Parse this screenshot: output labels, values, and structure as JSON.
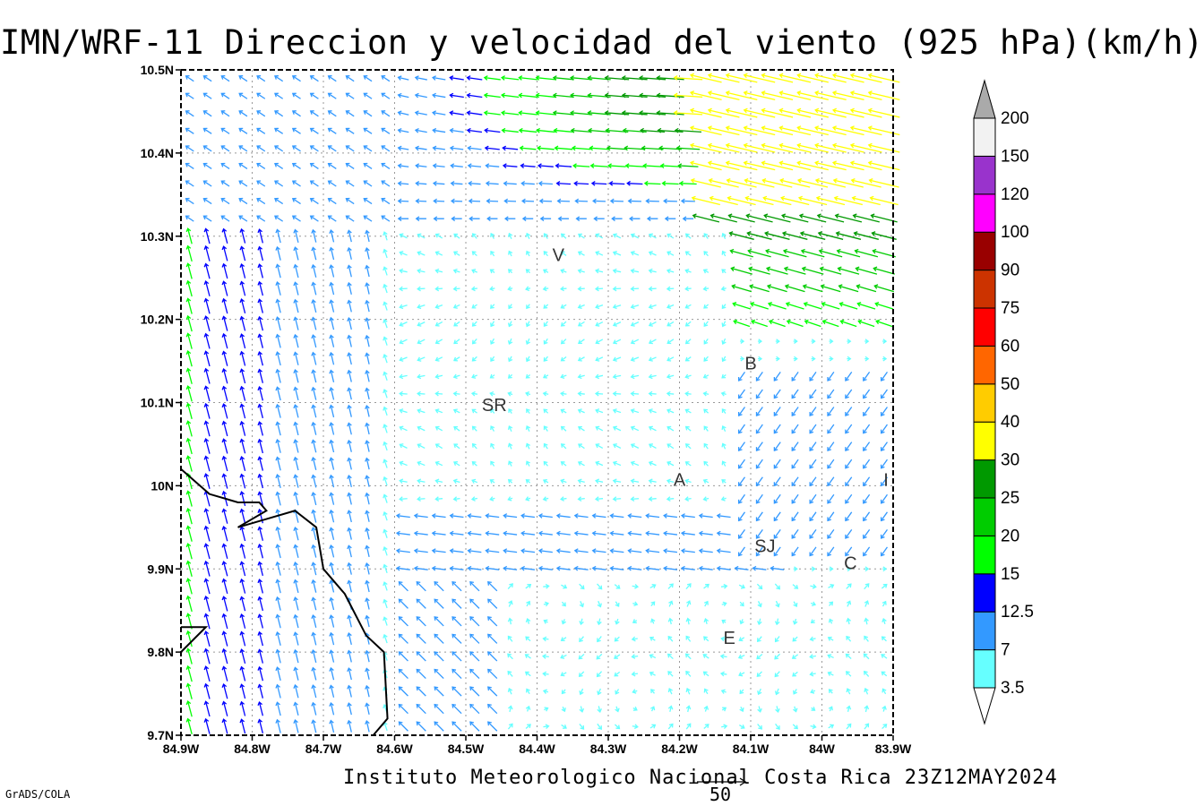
{
  "title": "IMN/WRF-11 Direccion y velocidad del viento (925 hPa)(km/h)",
  "footer": "Instituto Meteorologico Nacional Costa Rica 23Z12MAY2024",
  "credit": "GrADS/COLA",
  "reference_vector": {
    "value": "50"
  },
  "chart_data": {
    "type": "vector_field",
    "xlabel": "",
    "ylabel": "",
    "xlim": [
      -84.9,
      -83.9
    ],
    "ylim": [
      9.7,
      10.5
    ],
    "x_ticks": [
      "84.9W",
      "84.8W",
      "84.7W",
      "84.6W",
      "84.5W",
      "84.4W",
      "84.3W",
      "84.2W",
      "84.1W",
      "84W",
      "83.9W"
    ],
    "y_ticks": [
      "9.7N",
      "9.8N",
      "9.9N",
      "10N",
      "10.1N",
      "10.2N",
      "10.3N",
      "10.4N",
      "10.5N"
    ],
    "grid": true,
    "colorbar": {
      "labels": [
        "3.5",
        "7",
        "12.5",
        "15",
        "20",
        "25",
        "30",
        "40",
        "50",
        "60",
        "75",
        "90",
        "100",
        "120",
        "150",
        "200"
      ],
      "colors": [
        "#ffffff",
        "#66ffff",
        "#3399ff",
        "#0000ff",
        "#00ff00",
        "#00cc00",
        "#009900",
        "#ffff00",
        "#ffcc00",
        "#ff6600",
        "#ff0000",
        "#cc3300",
        "#990000",
        "#ff00ff",
        "#9933cc",
        "#f2f2f2",
        "#aaaaaa"
      ]
    },
    "places": [
      {
        "label": "V",
        "lon": -84.37,
        "lat": 10.27
      },
      {
        "label": "B",
        "lon": -84.1,
        "lat": 10.14
      },
      {
        "label": "SR",
        "lon": -84.46,
        "lat": 10.09
      },
      {
        "label": "A",
        "lon": -84.2,
        "lat": 10.0
      },
      {
        "label": "I",
        "lon": -83.91,
        "lat": 10.0
      },
      {
        "label": "SJ",
        "lon": -84.08,
        "lat": 9.92
      },
      {
        "label": "C",
        "lon": -83.96,
        "lat": 9.9
      },
      {
        "label": "E",
        "lon": -84.13,
        "lat": 9.81
      }
    ],
    "coastline": [
      [
        -84.9,
        10.02
      ],
      [
        -84.86,
        9.99
      ],
      [
        -84.82,
        9.98
      ],
      [
        -84.79,
        9.98
      ],
      [
        -84.78,
        9.97
      ],
      [
        -84.82,
        9.95
      ],
      [
        -84.78,
        9.96
      ],
      [
        -84.74,
        9.97
      ],
      [
        -84.71,
        9.95
      ],
      [
        -84.7,
        9.9
      ],
      [
        -84.67,
        9.87
      ],
      [
        -84.64,
        9.82
      ],
      [
        -84.615,
        9.8
      ],
      [
        -84.61,
        9.72
      ],
      [
        -84.63,
        9.7
      ]
    ],
    "coastline2": [
      [
        -84.9,
        9.83
      ],
      [
        -84.865,
        9.83
      ],
      [
        -84.9,
        9.8
      ]
    ]
  }
}
